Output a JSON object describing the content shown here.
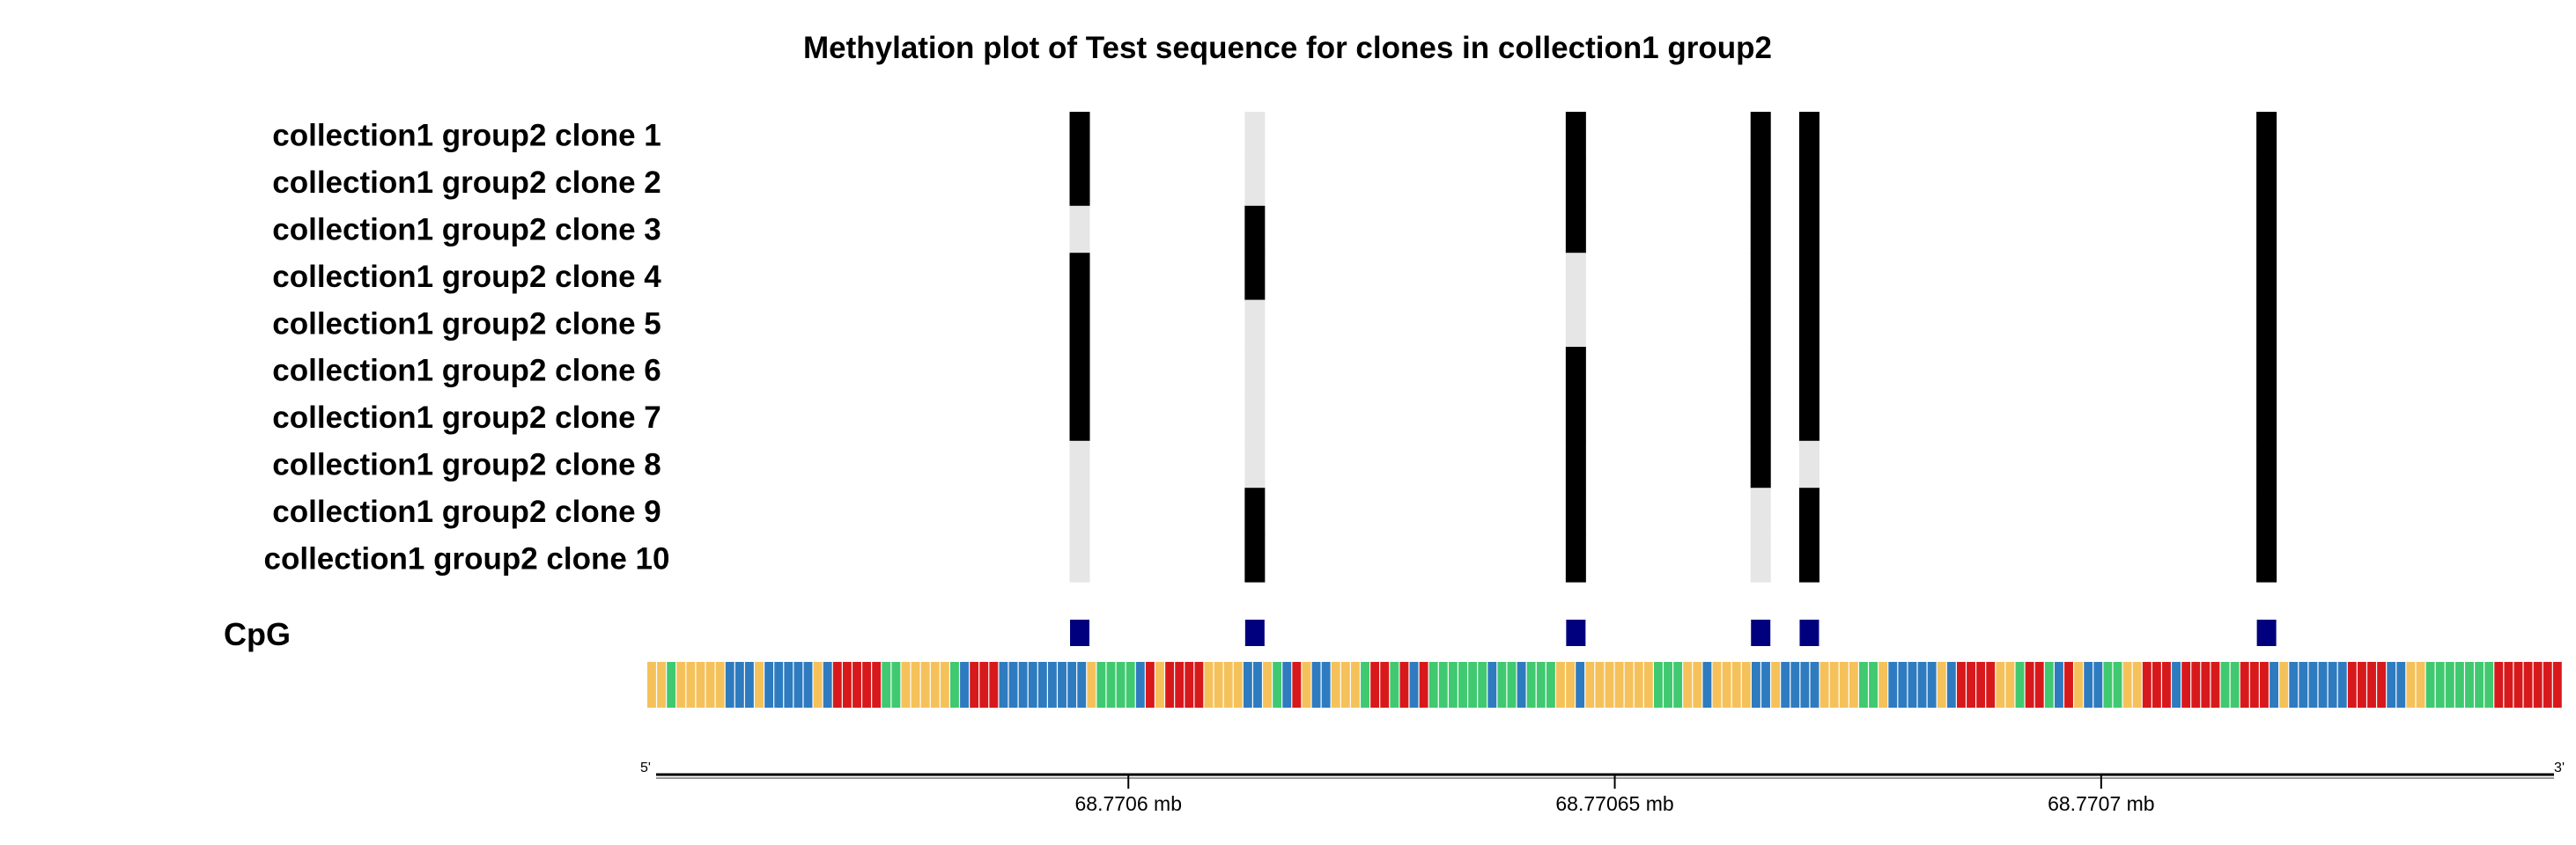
{
  "chart_data": {
    "type": "heatmap",
    "title": "Methylation plot of Test sequence for clones in collection1 group2",
    "clones": [
      "collection1 group2 clone 1",
      "collection1 group2 clone 2",
      "collection1 group2 clone 3",
      "collection1 group2 clone 4",
      "collection1 group2 clone 5",
      "collection1 group2 clone 6",
      "collection1 group2 clone 7",
      "collection1 group2 clone 8",
      "collection1 group2 clone 9",
      "collection1 group2 clone 10"
    ],
    "cpg_label": "CpG",
    "cpg_positions_mb": [
      68.770595,
      68.770613,
      68.770646,
      68.770665,
      68.77067,
      68.770717
    ],
    "methylation": [
      [
        1,
        0,
        1,
        1,
        1,
        1
      ],
      [
        1,
        0,
        1,
        1,
        1,
        1
      ],
      [
        0,
        1,
        1,
        1,
        1,
        1
      ],
      [
        1,
        1,
        0,
        1,
        1,
        1
      ],
      [
        1,
        0,
        0,
        1,
        1,
        1
      ],
      [
        1,
        0,
        1,
        1,
        1,
        1
      ],
      [
        1,
        0,
        1,
        1,
        1,
        1
      ],
      [
        0,
        0,
        1,
        1,
        0,
        1
      ],
      [
        0,
        1,
        1,
        0,
        1,
        1
      ],
      [
        0,
        1,
        1,
        0,
        1,
        1
      ]
    ],
    "methylation_colors": {
      "methylated": "#000000",
      "unmethylated": "#e6e6e6"
    },
    "cpg_marker_color": "#00007f",
    "sequence_colors": {
      "A": "#40c970",
      "C": "#2f7bbf",
      "G": "#f5c15a",
      "T": "#d7191c"
    },
    "x_range_mb": [
      68.770551,
      68.770747
    ],
    "x_ticks_mb": [
      68.7706,
      68.77065,
      68.7707
    ],
    "x_tick_labels": [
      "68.7706 mb",
      "68.77065 mb",
      "68.7707 mb"
    ],
    "axis_start_label": "5'",
    "axis_end_label": "3'"
  }
}
